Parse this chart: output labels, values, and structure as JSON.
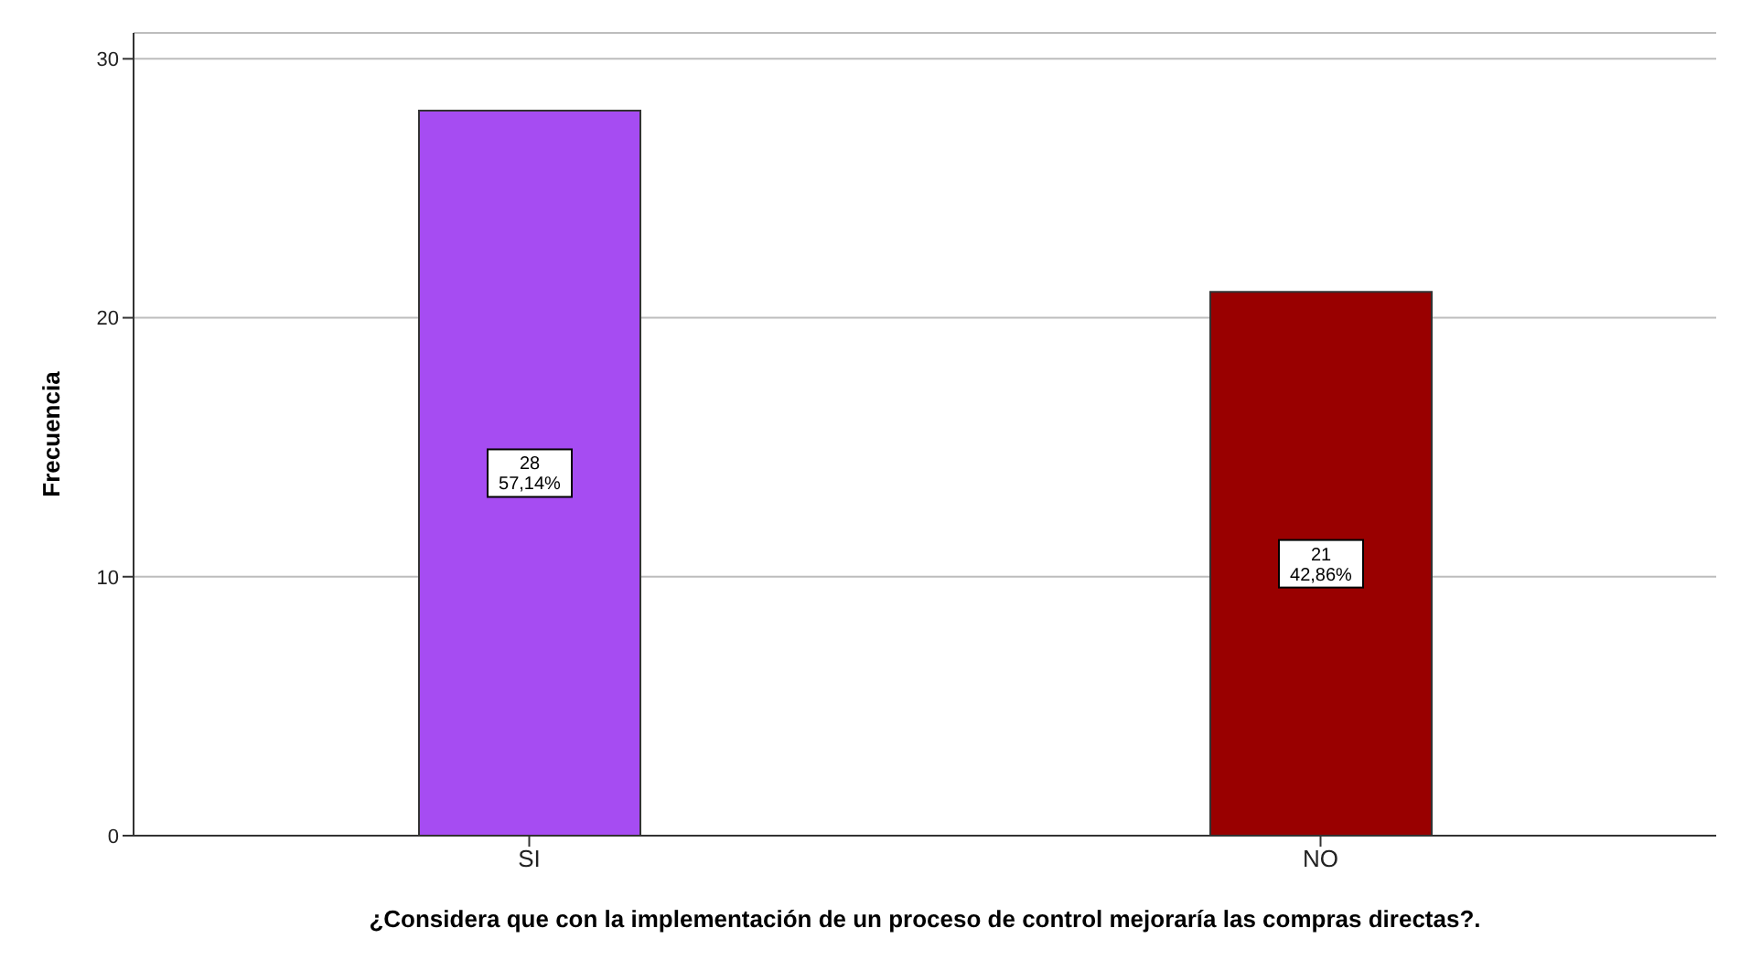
{
  "chart_data": {
    "type": "bar",
    "xlabel": "¿Considera que con la implementación de un proceso de control mejoraría  las compras directas?.",
    "ylabel": "Frecuencia",
    "categories": [
      "SI",
      "NO"
    ],
    "values": [
      28,
      21
    ],
    "colors": [
      "#a64cf2",
      "#990000"
    ],
    "value_labels": [
      "28\n57,14%",
      "21\n42,86%"
    ],
    "ylim": [
      0,
      31
    ],
    "yticks": [
      0,
      10,
      20,
      30
    ],
    "grid": "y",
    "legend": false
  }
}
